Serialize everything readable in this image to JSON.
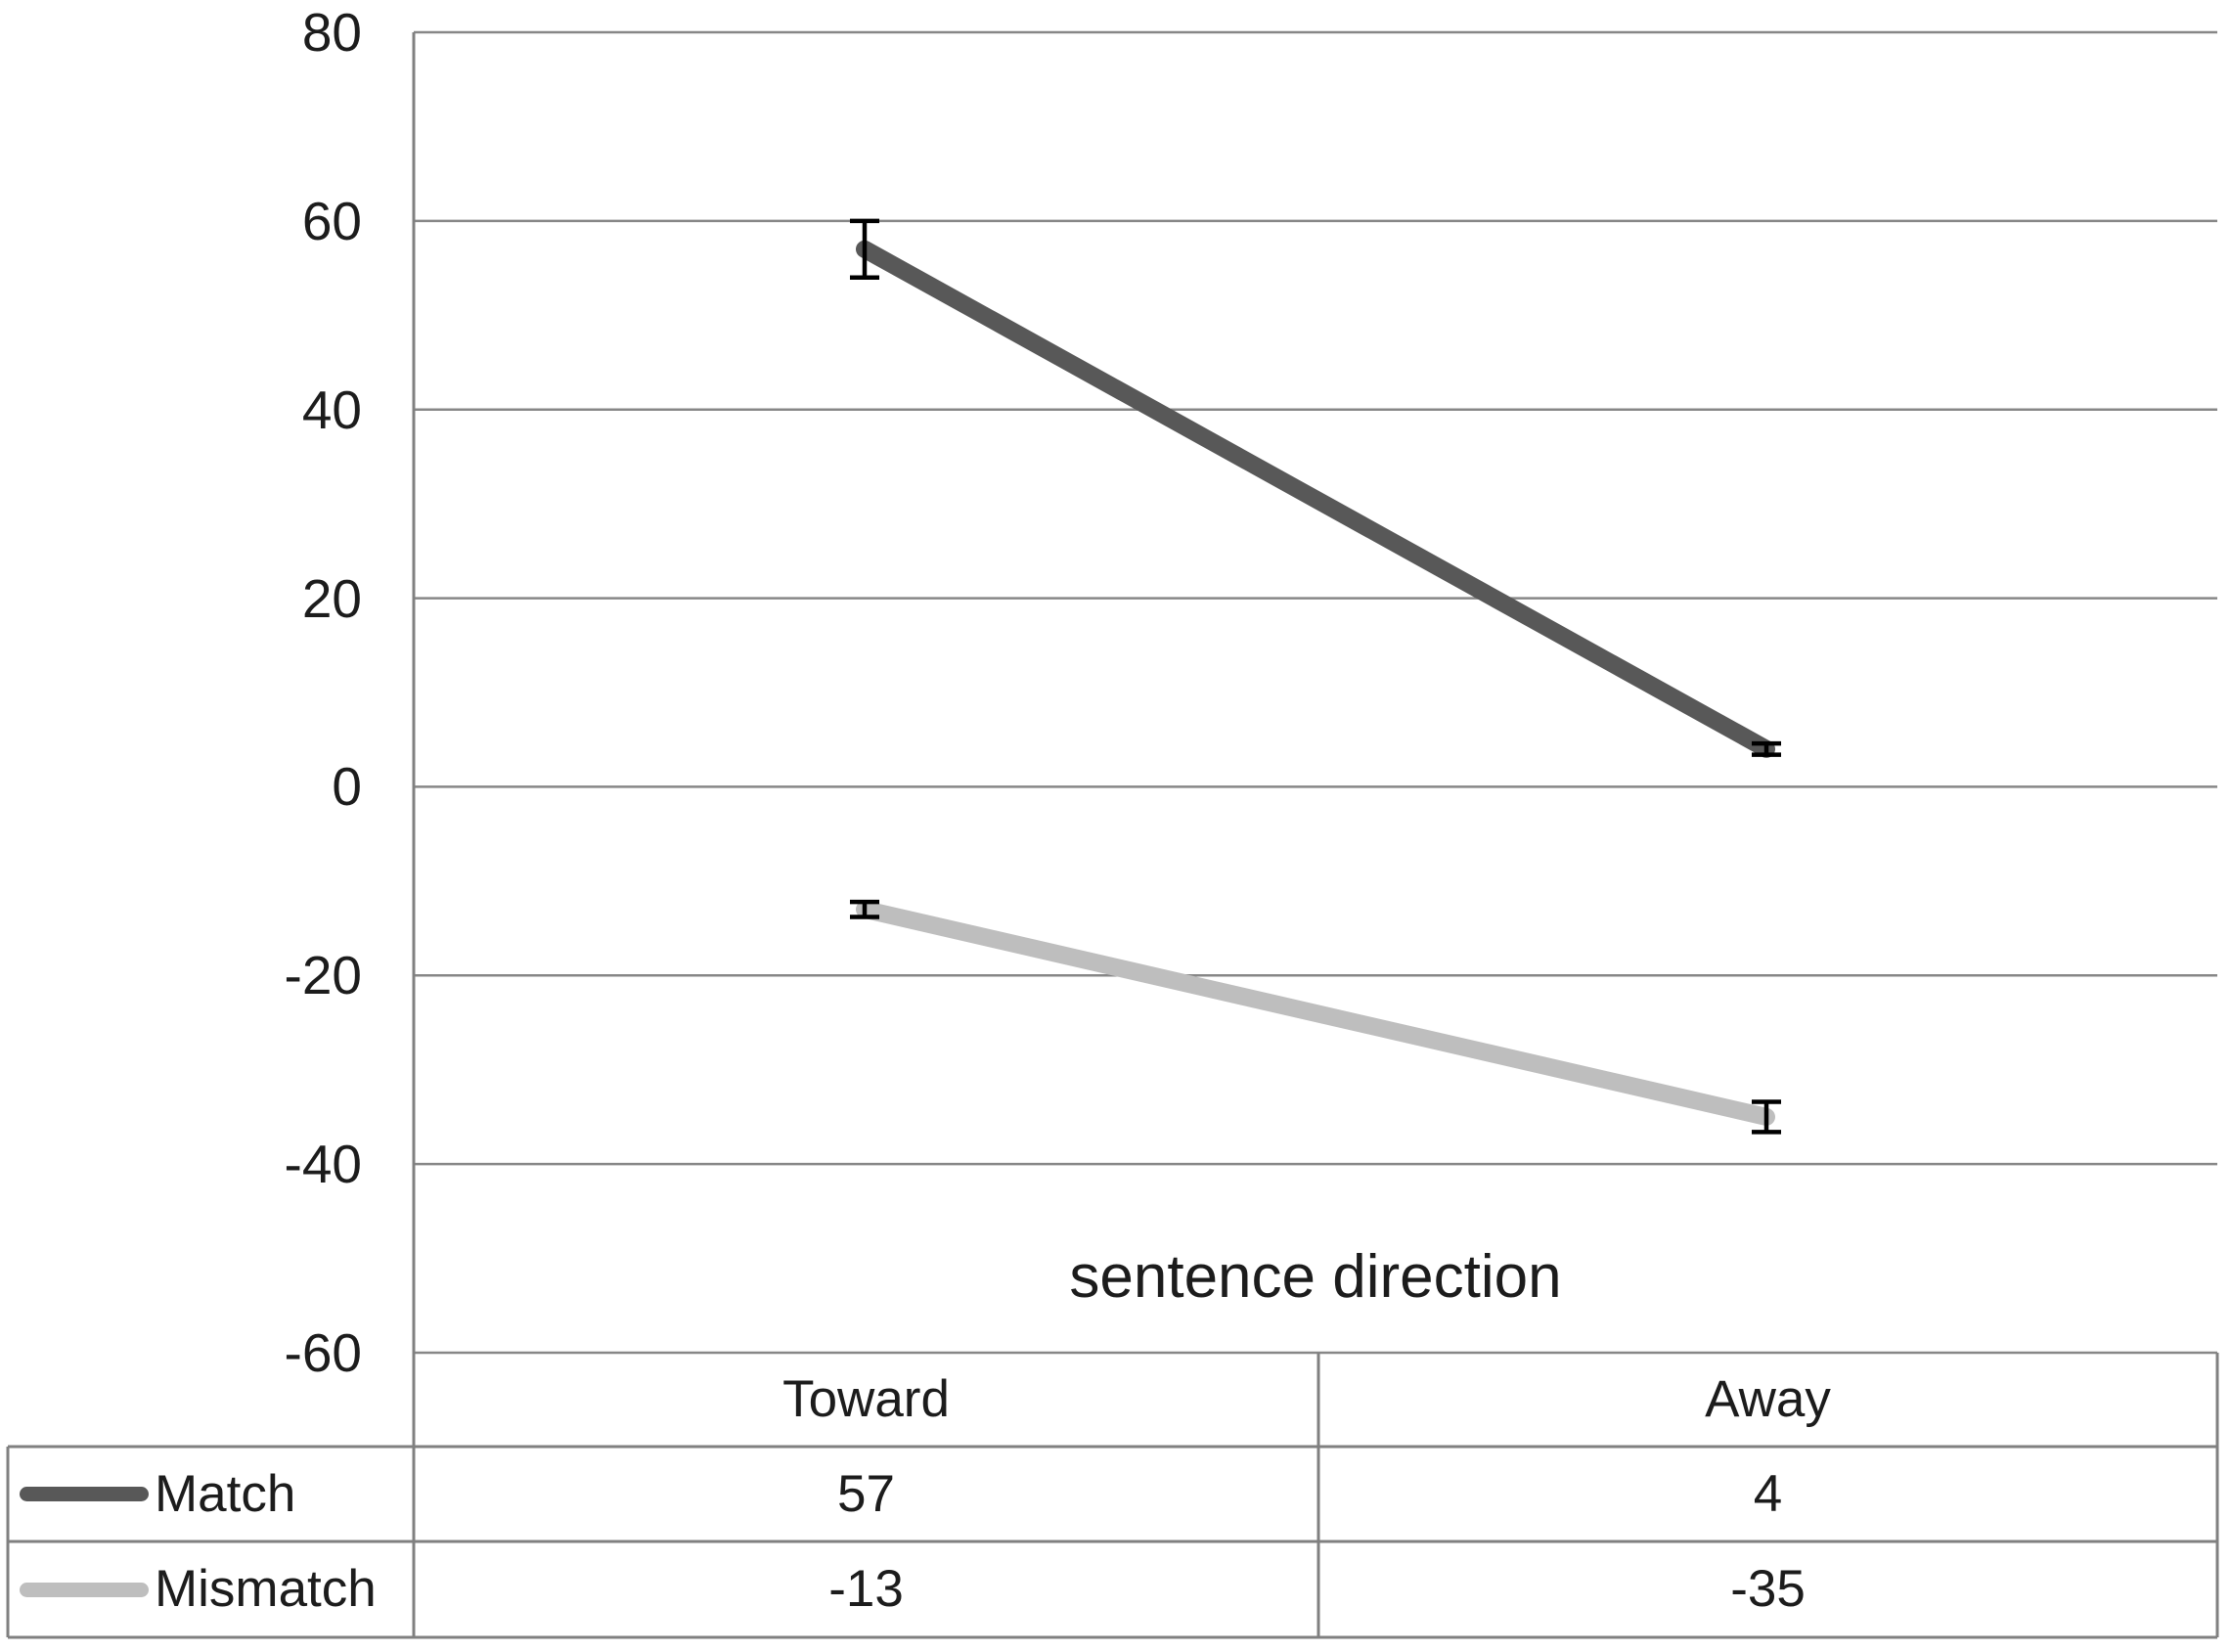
{
  "chart_data": {
    "type": "line",
    "title": "",
    "xlabel": "sentence direction",
    "ylabel": "",
    "categories": [
      "Toward",
      "Away"
    ],
    "series": [
      {
        "name": "Match",
        "values": [
          57,
          4
        ],
        "errors": [
          3.0,
          0.6
        ],
        "color": "#585858"
      },
      {
        "name": "Mismatch",
        "values": [
          -13,
          -35
        ],
        "errors": [
          0.8,
          1.6
        ],
        "color": "#bebebe"
      }
    ],
    "y_ticks": [
      80,
      60,
      40,
      20,
      0,
      -20,
      -40,
      -60
    ],
    "ylim": [
      -60,
      80
    ],
    "grid": true,
    "legend_position": "data-table-left",
    "data_table_shown": true
  },
  "colors": {
    "gridline": "#878787",
    "table_border": "#808080",
    "error_bar": "#000000",
    "text": "#1c1c1c",
    "background": "#ffffff"
  }
}
